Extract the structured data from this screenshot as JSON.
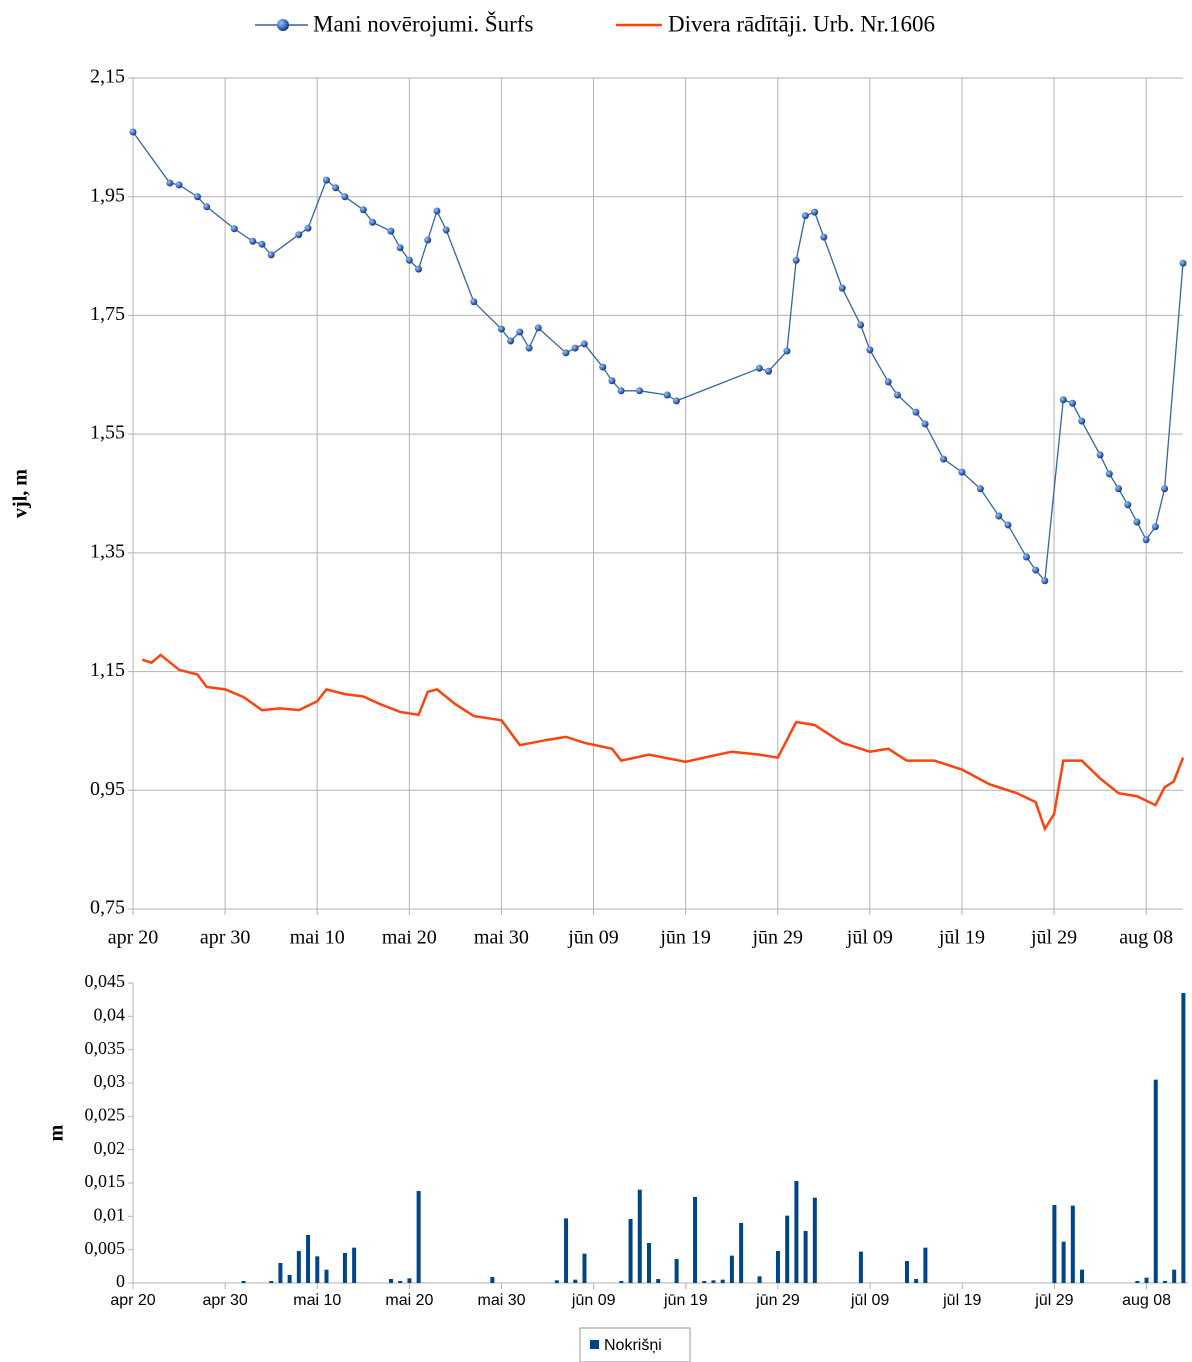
{
  "chart_data": [
    {
      "type": "line",
      "ylabel": "vjl, m",
      "grid": true,
      "xlim": [
        0,
        114
      ],
      "ylim": [
        0.75,
        2.15
      ],
      "xticks": [
        {
          "value": 0,
          "label": "apr 20"
        },
        {
          "value": 10,
          "label": "apr 30"
        },
        {
          "value": 20,
          "label": "mai 10"
        },
        {
          "value": 30,
          "label": "mai 20"
        },
        {
          "value": 40,
          "label": "mai 30"
        },
        {
          "value": 50,
          "label": "jūn 09"
        },
        {
          "value": 60,
          "label": "jūn 19"
        },
        {
          "value": 70,
          "label": "jūn 29"
        },
        {
          "value": 80,
          "label": "jūl 09"
        },
        {
          "value": 90,
          "label": "jūl 19"
        },
        {
          "value": 100,
          "label": "jūl 29"
        },
        {
          "value": 110,
          "label": "aug 08"
        }
      ],
      "yticks": [
        {
          "value": 0.75,
          "label": "0,75"
        },
        {
          "value": 0.95,
          "label": "0,95"
        },
        {
          "value": 1.15,
          "label": "1,15"
        },
        {
          "value": 1.35,
          "label": "1,35"
        },
        {
          "value": 1.55,
          "label": "1,55"
        },
        {
          "value": 1.75,
          "label": "1,75"
        },
        {
          "value": 1.95,
          "label": "1,95"
        },
        {
          "value": 2.15,
          "label": "2,15"
        }
      ],
      "series": [
        {
          "name": "Mani novērojumi. Šurfs",
          "color": "#3465a4",
          "markers": true,
          "x": [
            0,
            4,
            5,
            7,
            8,
            11,
            13,
            14,
            15,
            18,
            19,
            21,
            22,
            23,
            25,
            26,
            28,
            29,
            30,
            31,
            32,
            33,
            34,
            37,
            40,
            41,
            42,
            43,
            44,
            47,
            48,
            49,
            51,
            52,
            53,
            55,
            58,
            59,
            68,
            69,
            71,
            72,
            73,
            74,
            75,
            77,
            79,
            80,
            82,
            83,
            85,
            86,
            88,
            90,
            92,
            94,
            95,
            97,
            98,
            99,
            101,
            102,
            103,
            105,
            106,
            107,
            108,
            109,
            110,
            111,
            112,
            114
          ],
          "values": [
            2.059,
            1.973,
            1.97,
            1.95,
            1.933,
            1.896,
            1.875,
            1.87,
            1.852,
            1.886,
            1.897,
            1.978,
            1.965,
            1.95,
            1.928,
            1.907,
            1.892,
            1.864,
            1.843,
            1.828,
            1.877,
            1.926,
            1.894,
            1.773,
            1.727,
            1.707,
            1.722,
            1.695,
            1.729,
            1.687,
            1.695,
            1.702,
            1.663,
            1.64,
            1.623,
            1.623,
            1.616,
            1.606,
            1.661,
            1.656,
            1.69,
            1.843,
            1.918,
            1.924,
            1.882,
            1.796,
            1.734,
            1.692,
            1.638,
            1.616,
            1.587,
            1.567,
            1.508,
            1.486,
            1.458,
            1.412,
            1.397,
            1.343,
            1.321,
            1.303,
            1.608,
            1.602,
            1.572,
            1.515,
            1.483,
            1.458,
            1.431,
            1.402,
            1.372,
            1.394,
            1.458,
            1.838
          ]
        },
        {
          "name": "Divera rādītāji. Urb. Nr.1606",
          "color": "#ff420e",
          "markers": false,
          "x": [
            1,
            2,
            3,
            5,
            7,
            8,
            10,
            12,
            14,
            16,
            18,
            20,
            21,
            23,
            25,
            27,
            29,
            31,
            32,
            33,
            35,
            37,
            40,
            42,
            45,
            47,
            49,
            52,
            53,
            56,
            60,
            62,
            65,
            68,
            70,
            72,
            74,
            77,
            80,
            82,
            84,
            87,
            90,
            93,
            96,
            98,
            99,
            100,
            101,
            103,
            105,
            107,
            109,
            111,
            112,
            113,
            114
          ],
          "values": [
            1.17,
            1.165,
            1.178,
            1.153,
            1.145,
            1.124,
            1.12,
            1.107,
            1.085,
            1.088,
            1.085,
            1.1,
            1.12,
            1.112,
            1.108,
            1.094,
            1.082,
            1.077,
            1.116,
            1.12,
            1.095,
            1.075,
            1.068,
            1.026,
            1.035,
            1.04,
            1.03,
            1.02,
            1.0,
            1.01,
            0.998,
            1.005,
            1.015,
            1.01,
            1.005,
            1.065,
            1.06,
            1.03,
            1.015,
            1.02,
            1.0,
            1.0,
            0.985,
            0.96,
            0.945,
            0.93,
            0.885,
            0.91,
            1.0,
            1.0,
            0.97,
            0.945,
            0.94,
            0.925,
            0.955,
            0.965,
            1.005
          ]
        }
      ]
    },
    {
      "type": "bar",
      "ylabel": "m",
      "grid": false,
      "xlim": [
        0,
        114.5
      ],
      "ylim": [
        0,
        0.045
      ],
      "xticks": [
        {
          "value": 0,
          "label": "apr 20"
        },
        {
          "value": 10,
          "label": "apr 30"
        },
        {
          "value": 20,
          "label": "mai 10"
        },
        {
          "value": 30,
          "label": "mai 20"
        },
        {
          "value": 40,
          "label": "mai 30"
        },
        {
          "value": 50,
          "label": "jūn 09"
        },
        {
          "value": 60,
          "label": "jūn 19"
        },
        {
          "value": 70,
          "label": "jūn 29"
        },
        {
          "value": 80,
          "label": "jūl 09"
        },
        {
          "value": 90,
          "label": "jūl 19"
        },
        {
          "value": 100,
          "label": "jūl 29"
        },
        {
          "value": 110,
          "label": "aug 08"
        }
      ],
      "yticks": [
        0,
        {
          "value": 0.005,
          "label": "0,005"
        },
        {
          "value": 0.01,
          "label": "0,01"
        },
        {
          "value": 0.015,
          "label": "0,015"
        },
        {
          "value": 0.02,
          "label": "0,02"
        },
        {
          "value": 0.025,
          "label": "0,025"
        },
        {
          "value": 0.03,
          "label": "0,03"
        },
        {
          "value": 0.035,
          "label": "0,035"
        },
        {
          "value": 0.04,
          "label": "0,04"
        },
        {
          "value": 0.045,
          "label": "0,045"
        }
      ],
      "series": [
        {
          "name": "Nokrišņi",
          "color": "#004586",
          "x": [
            12,
            15,
            16,
            17,
            18,
            19,
            20,
            21,
            23,
            24,
            28,
            29,
            30,
            31,
            39,
            46,
            47,
            48,
            49,
            53,
            54,
            55,
            56,
            57,
            59,
            61,
            62,
            63,
            64,
            65,
            66,
            68,
            70,
            71,
            72,
            73,
            74,
            79,
            84,
            85,
            86,
            100,
            101,
            102,
            103,
            109,
            110,
            111,
            112,
            113,
            114
          ],
          "values": [
            0.0003,
            0.0003,
            0.003,
            0.0012,
            0.0048,
            0.0072,
            0.004,
            0.002,
            0.0045,
            0.0053,
            0.0006,
            0.0003,
            0.0007,
            0.0138,
            0.0009,
            0.0004,
            0.0097,
            0.0005,
            0.0044,
            0.0003,
            0.0096,
            0.014,
            0.006,
            0.0006,
            0.0036,
            0.0129,
            0.0003,
            0.0004,
            0.0005,
            0.0041,
            0.009,
            0.001,
            0.0048,
            0.0101,
            0.0153,
            0.0078,
            0.0128,
            0.0047,
            0.0033,
            0.0006,
            0.0053,
            0.0117,
            0.0062,
            0.0116,
            0.002,
            0.0003,
            0.0008,
            0.0305,
            0.0003,
            0.002,
            0.0435
          ]
        }
      ]
    }
  ]
}
